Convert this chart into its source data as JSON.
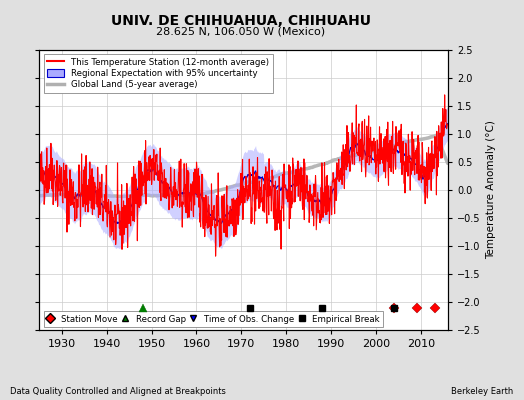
{
  "title": "UNIV. DE CHIHUAHUA, CHIHUAHU",
  "subtitle": "28.625 N, 106.050 W (Mexico)",
  "ylabel": "Temperature Anomaly (°C)",
  "xlabel_note": "Data Quality Controlled and Aligned at Breakpoints",
  "attribution": "Berkeley Earth",
  "ylim": [
    -2.5,
    2.5
  ],
  "xlim": [
    1925,
    2016
  ],
  "yticks": [
    -2.5,
    -2,
    -1.5,
    -1,
    -0.5,
    0,
    0.5,
    1,
    1.5,
    2,
    2.5
  ],
  "xticks": [
    1930,
    1940,
    1950,
    1960,
    1970,
    1980,
    1990,
    2000,
    2010
  ],
  "bg_color": "#e0e0e0",
  "plot_bg_color": "#ffffff",
  "grid_color": "#cccccc",
  "station_color": "#ff0000",
  "regional_color": "#0000cc",
  "regional_fill_color": "#aaaaff",
  "global_color": "#b0b0b0",
  "legend_labels": [
    "This Temperature Station (12-month average)",
    "Regional Expectation with 95% uncertainty",
    "Global Land (5-year average)"
  ],
  "marker_events": {
    "station_move": [
      2004,
      2009,
      2013
    ],
    "record_gap": [
      1948
    ],
    "time_obs_change": [],
    "empirical_break": [
      1972,
      1988,
      2004
    ]
  },
  "seed": 42
}
